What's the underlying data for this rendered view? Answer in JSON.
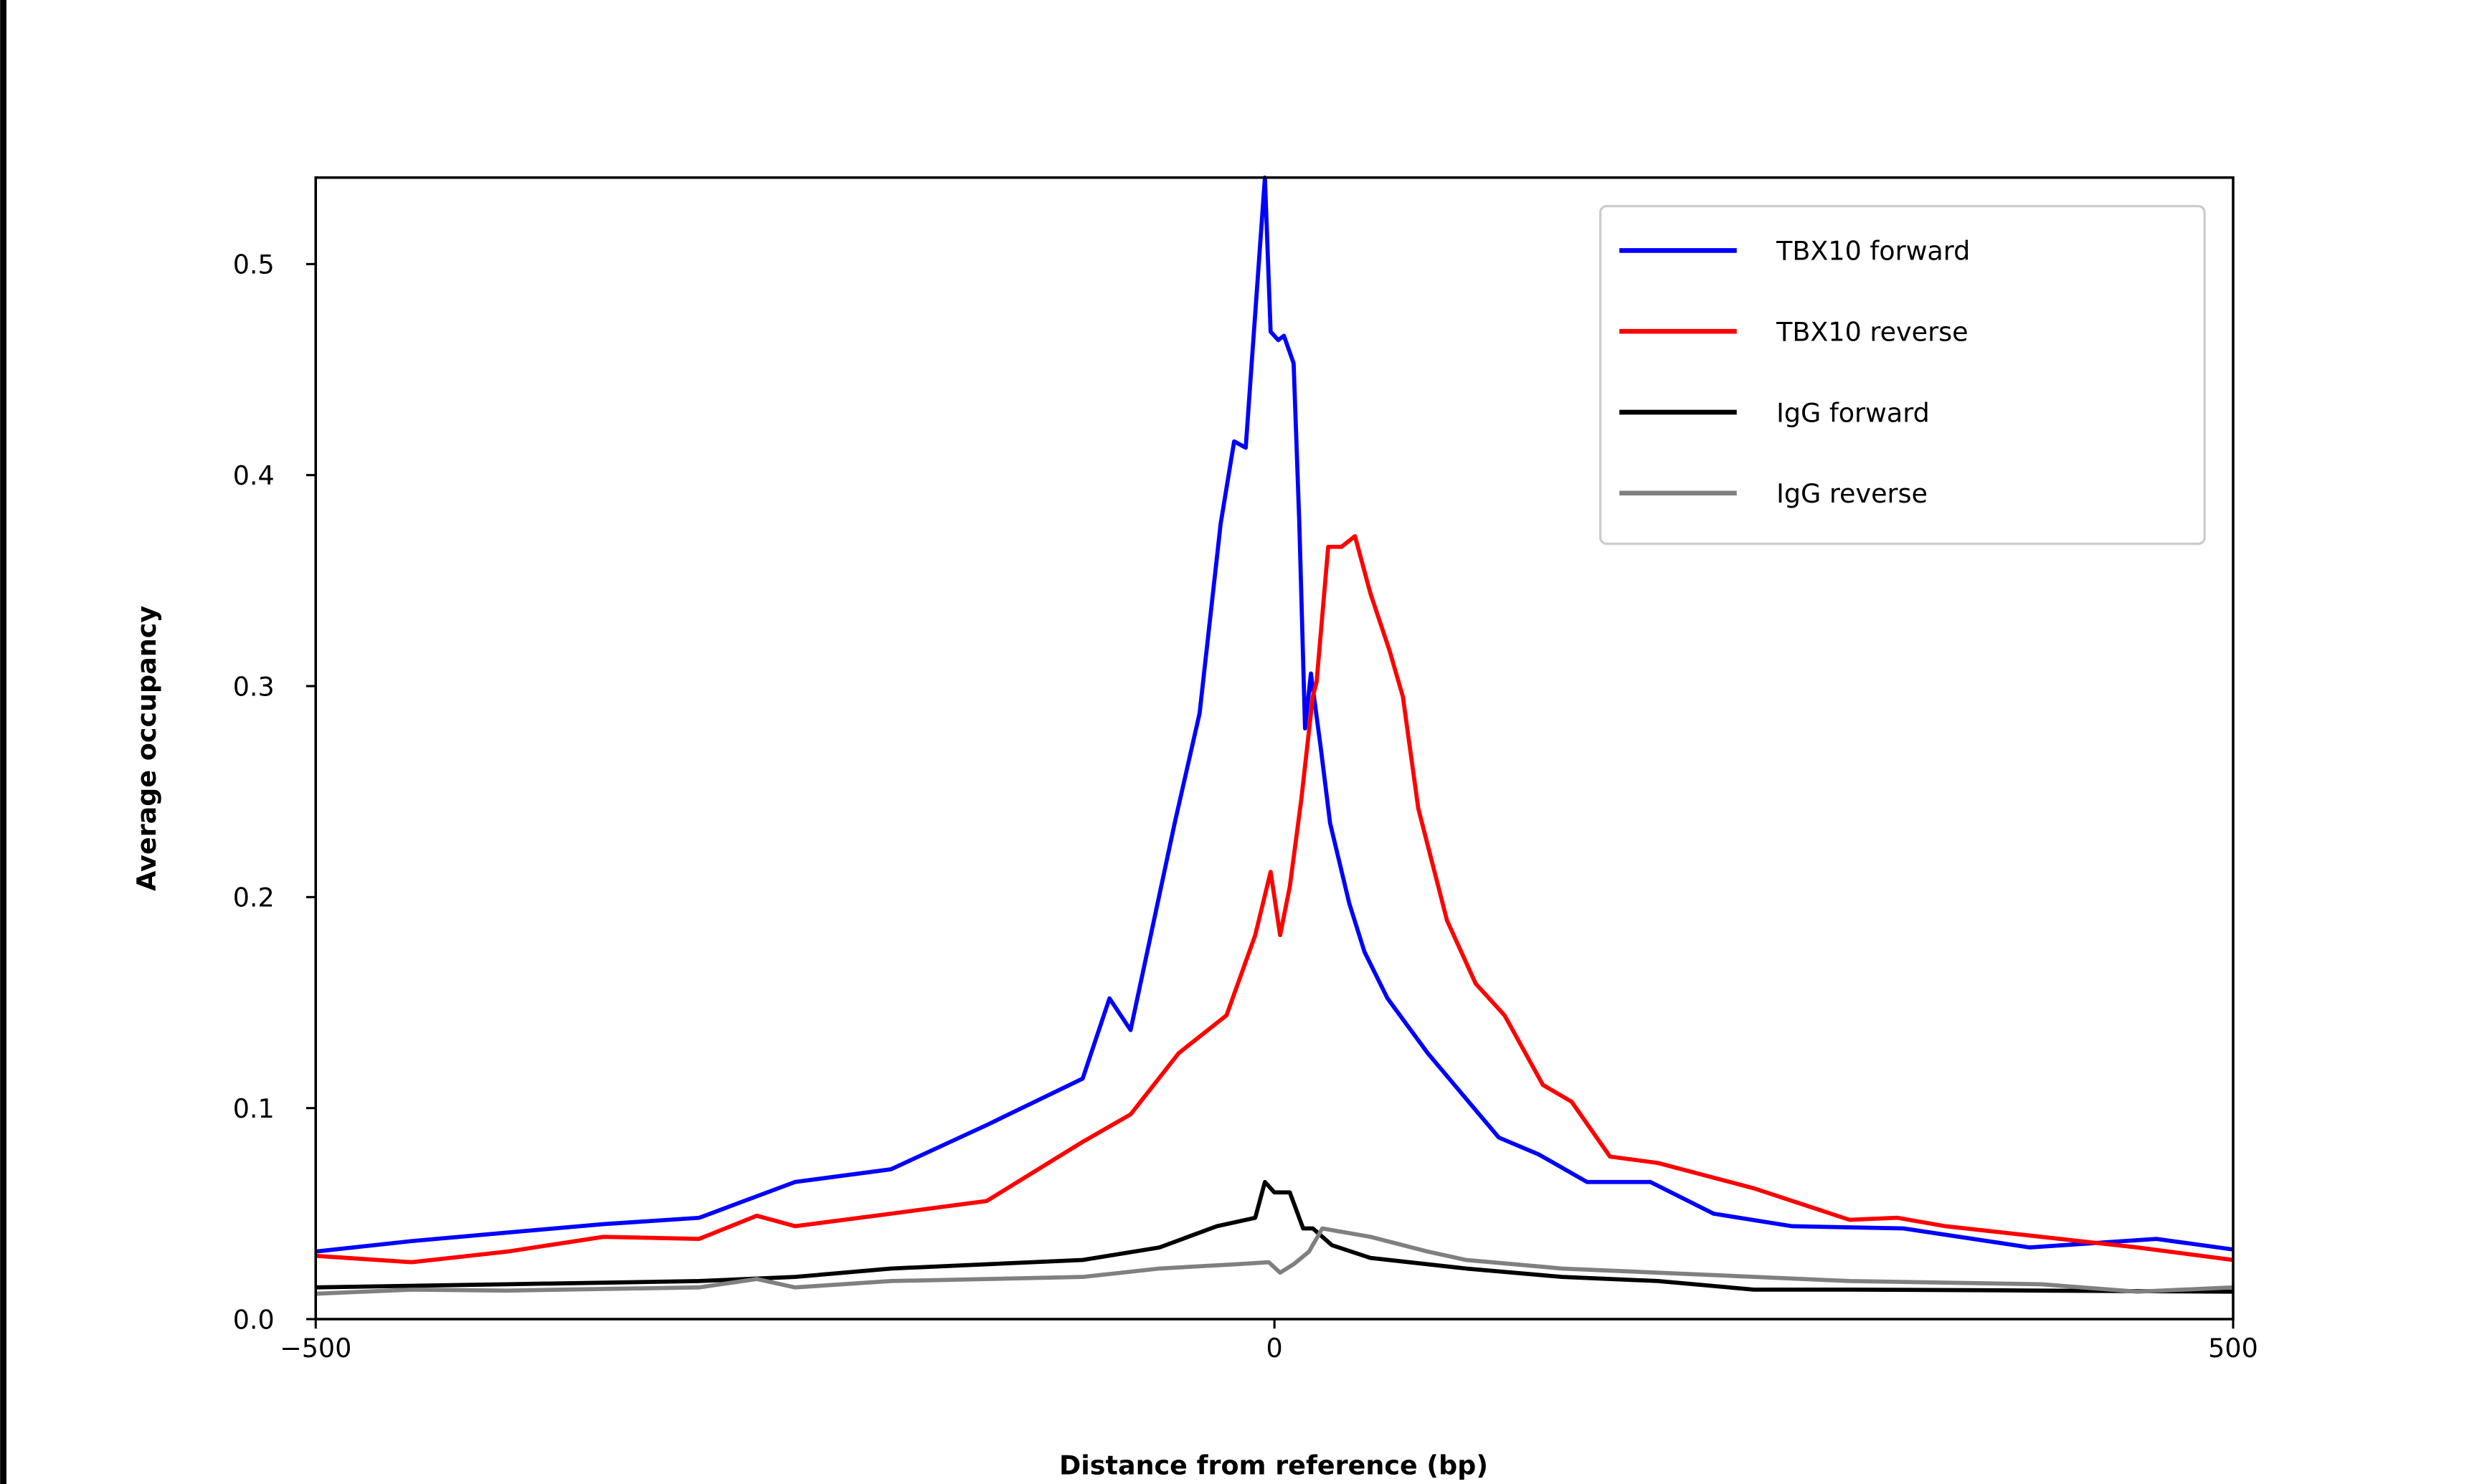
{
  "chart_data": {
    "type": "line",
    "title": "",
    "xlabel": "Distance from reference (bp)",
    "ylabel": "Average occupancy",
    "xlim": [
      -500,
      500
    ],
    "ylim": [
      0,
      0.541
    ],
    "xticks": [
      -500,
      0,
      500
    ],
    "xtick_labels": [
      "−500",
      "0",
      "500"
    ],
    "yticks": [
      0.0,
      0.1,
      0.2,
      0.3,
      0.4,
      0.5
    ],
    "ytick_labels": [
      "0.0",
      "0.1",
      "0.2",
      "0.3",
      "0.4",
      "0.5"
    ],
    "grid": false,
    "legend_position": "top-right",
    "series": [
      {
        "name": "TBX10 forward",
        "color": "#0000ff",
        "x": [
          -500,
          -450,
          -400,
          -350,
          -300,
          -250,
          -200,
          -150,
          -100,
          -86,
          -75,
          -52,
          -39,
          -28,
          -21,
          -15,
          -11,
          -5,
          -2,
          2,
          5,
          10,
          13,
          16,
          19,
          24,
          29,
          39,
          47,
          59,
          80,
          105,
          117,
          138,
          163,
          196,
          229,
          270,
          328,
          394,
          460,
          500
        ],
        "y": [
          0.032,
          0.037,
          0.041,
          0.045,
          0.048,
          0.065,
          0.071,
          0.092,
          0.114,
          0.152,
          0.137,
          0.235,
          0.287,
          0.377,
          0.416,
          0.413,
          0.464,
          0.541,
          0.468,
          0.464,
          0.466,
          0.453,
          0.377,
          0.28,
          0.306,
          0.272,
          0.235,
          0.197,
          0.174,
          0.152,
          0.126,
          0.099,
          0.086,
          0.078,
          0.065,
          0.065,
          0.05,
          0.044,
          0.043,
          0.034,
          0.038,
          0.033
        ]
      },
      {
        "name": "TBX10 reverse",
        "color": "#ff0000",
        "x": [
          -500,
          -450,
          -400,
          -350,
          -300,
          -270,
          -250,
          -200,
          -150,
          -100,
          -75,
          -50,
          -25,
          -10,
          -2,
          3,
          8,
          14,
          20,
          22,
          28,
          35,
          42,
          50,
          60,
          67,
          75,
          90,
          105,
          120,
          140,
          155,
          175,
          200,
          250,
          300,
          325,
          350,
          400,
          450,
          500
        ],
        "y": [
          0.03,
          0.027,
          0.032,
          0.039,
          0.038,
          0.049,
          0.044,
          0.05,
          0.056,
          0.084,
          0.097,
          0.126,
          0.144,
          0.182,
          0.212,
          0.182,
          0.205,
          0.246,
          0.295,
          0.302,
          0.366,
          0.366,
          0.371,
          0.344,
          0.317,
          0.295,
          0.242,
          0.189,
          0.159,
          0.144,
          0.111,
          0.103,
          0.077,
          0.074,
          0.062,
          0.047,
          0.048,
          0.044,
          0.039,
          0.034,
          0.028
        ]
      },
      {
        "name": "IgG forward",
        "color": "#000000",
        "x": [
          -500,
          -400,
          -300,
          -250,
          -200,
          -150,
          -100,
          -60,
          -30,
          -10,
          -5,
          0,
          8,
          15,
          20,
          30,
          50,
          100,
          150,
          200,
          250,
          300,
          400,
          500
        ],
        "y": [
          0.015,
          0.0165,
          0.018,
          0.02,
          0.024,
          0.026,
          0.028,
          0.034,
          0.044,
          0.048,
          0.065,
          0.06,
          0.06,
          0.043,
          0.043,
          0.035,
          0.029,
          0.024,
          0.02,
          0.018,
          0.014,
          0.014,
          0.0135,
          0.013
        ]
      },
      {
        "name": "IgG reverse",
        "color": "#808080",
        "x": [
          -500,
          -450,
          -400,
          -300,
          -270,
          -250,
          -200,
          -100,
          -60,
          -20,
          -3,
          3,
          10,
          18,
          25,
          50,
          80,
          100,
          150,
          200,
          300,
          400,
          450,
          500
        ],
        "y": [
          0.012,
          0.014,
          0.0135,
          0.015,
          0.019,
          0.015,
          0.018,
          0.02,
          0.024,
          0.026,
          0.027,
          0.022,
          0.026,
          0.032,
          0.043,
          0.039,
          0.032,
          0.028,
          0.024,
          0.022,
          0.018,
          0.0165,
          0.013,
          0.015
        ]
      }
    ]
  }
}
